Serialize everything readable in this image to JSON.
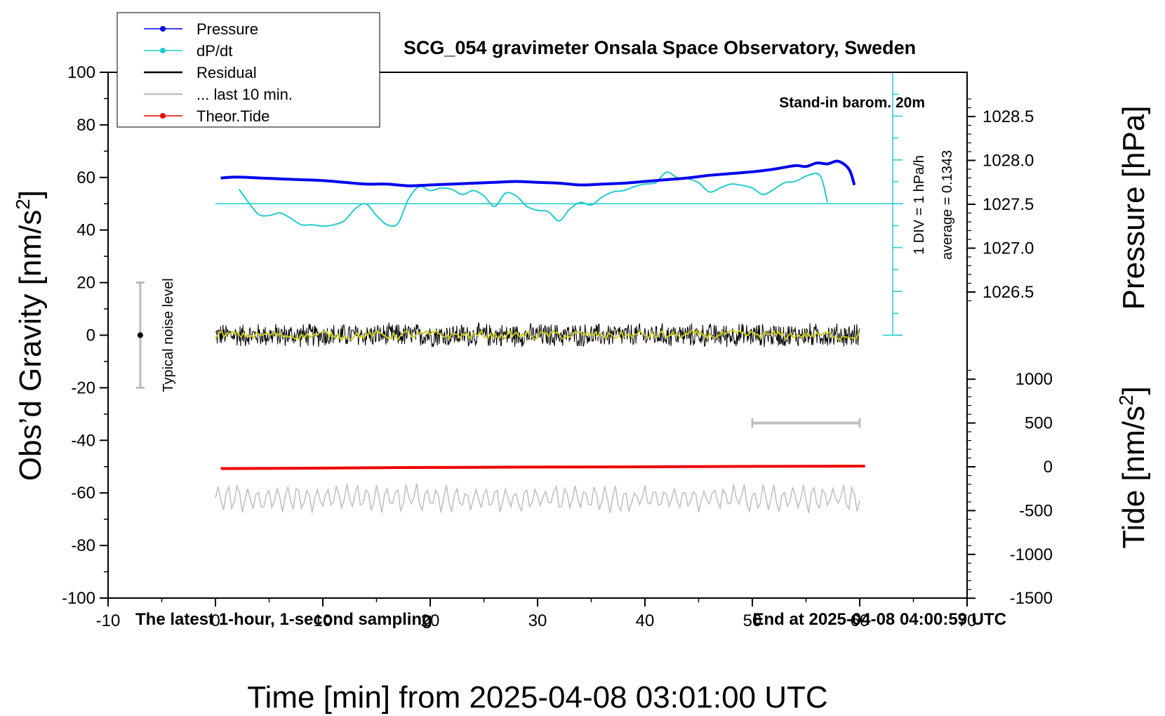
{
  "chart_data": {
    "type": "line",
    "title": "SCG_054 gravimeter Onsala Space Observatory, Sweden",
    "xlabel": "Time [min] from 2025-04-08 03:01:00 UTC",
    "ylabel_left": "Obs’d Gravity [nm/s",
    "ylabel_left_sup": "2",
    "ylabel_left_close": "]",
    "ylabel_right_pressure": "Pressure [hPa]",
    "ylabel_right_tide": "Tide [nm/s",
    "ylabel_right_tide_sup": "2",
    "ylabel_right_tide_close": "]",
    "xlim": [
      -10,
      70
    ],
    "ylim_left": [
      -100,
      100
    ],
    "x_ticks": [
      "-10",
      "0",
      "10",
      "20",
      "30",
      "40",
      "50",
      "60",
      "70"
    ],
    "y_ticks_left": [
      "100",
      "80",
      "60",
      "40",
      "20",
      "0",
      "-20",
      "-40",
      "-60",
      "-80",
      "-100"
    ],
    "pressure_ticks": [
      "1028.5",
      "1028.0",
      "1027.5",
      "1027.0",
      "1026.5"
    ],
    "tide_ticks": [
      "1000",
      "500",
      "0",
      "-500",
      "-1000",
      "-1500"
    ],
    "annotations": {
      "barometer": "Stand-in barom. 20m",
      "scale": "1 DIV = 1 hPa/h",
      "average": "average = 0.1343",
      "noise": "Typical noise level",
      "bottom_left": "The latest 1-hour, 1-second sampling",
      "bottom_right": "End at 2025-04-08 04:00:59 UTC"
    },
    "legend": [
      {
        "label": "Pressure",
        "color": "#0000ee",
        "marker": true
      },
      {
        "label": "dP/dt",
        "color": "#22cccc",
        "marker": true
      },
      {
        "label": "Residual",
        "color": "#000000",
        "marker": false
      },
      {
        "label": "... last 10 min.",
        "color": "#c0c0c0",
        "marker": false
      },
      {
        "label": "Theor.Tide",
        "color": "#ee0000",
        "marker": true
      }
    ],
    "series": [
      {
        "name": "Pressure",
        "units": "hPa",
        "color": "#0000ee",
        "x": [
          0.5,
          2,
          4,
          6,
          8,
          10,
          12,
          14,
          16,
          18,
          20,
          22,
          24,
          26,
          28,
          30,
          32,
          34,
          36,
          38,
          40,
          42,
          44,
          46,
          48,
          50,
          52,
          54,
          55,
          56,
          57,
          58,
          59,
          59.5
        ],
        "y": [
          1027.8,
          1027.81,
          1027.8,
          1027.79,
          1027.78,
          1027.77,
          1027.75,
          1027.73,
          1027.73,
          1027.71,
          1027.72,
          1027.73,
          1027.74,
          1027.75,
          1027.76,
          1027.75,
          1027.74,
          1027.72,
          1027.73,
          1027.74,
          1027.76,
          1027.78,
          1027.8,
          1027.83,
          1027.85,
          1027.87,
          1027.9,
          1027.94,
          1027.93,
          1027.97,
          1027.96,
          1027.99,
          1027.9,
          1027.72
        ]
      },
      {
        "name": "dP/dt",
        "units": "DIV (1 DIV = 1 hPa/h)",
        "baseline_gravity": 50,
        "color": "#22cccc",
        "x": [
          2.2,
          3,
          4,
          5,
          6,
          7,
          8,
          9,
          10,
          11,
          12,
          13,
          14,
          15,
          16,
          17,
          18,
          19,
          20,
          21,
          22,
          23,
          24,
          25,
          26,
          27,
          28,
          29,
          30,
          31,
          32,
          33,
          34,
          35,
          36,
          37,
          38,
          39,
          40,
          41,
          42,
          43,
          44,
          45,
          46,
          47,
          48,
          49,
          50,
          51,
          52,
          53,
          54,
          55,
          56,
          56.5,
          57
        ],
        "y": [
          0.55,
          0.1,
          -0.4,
          -0.45,
          -0.35,
          -0.55,
          -0.8,
          -0.8,
          -0.85,
          -0.8,
          -0.65,
          -0.2,
          0,
          -0.45,
          -0.8,
          -0.75,
          0.2,
          0.65,
          0.5,
          0.6,
          0.55,
          0.35,
          0.5,
          0.3,
          -0.1,
          0.4,
          0.3,
          -0.1,
          -0.25,
          -0.3,
          -0.65,
          -0.2,
          0.05,
          -0.05,
          0.25,
          0.45,
          0.5,
          0.65,
          0.75,
          0.8,
          1.2,
          1.0,
          0.95,
          0.8,
          0.45,
          0.6,
          0.75,
          0.7,
          0.6,
          0.35,
          0.55,
          0.8,
          0.85,
          1.05,
          1.15,
          0.9,
          0.05
        ]
      },
      {
        "name": "Residual",
        "units": "nm/s2",
        "color": "#000000",
        "x_range": [
          0,
          60
        ],
        "amplitude": 5,
        "mean": 0
      },
      {
        "name": "Residual smoothed",
        "units": "nm/s2",
        "color": "#cccc22",
        "x_range": [
          0,
          60
        ],
        "amplitude": 1,
        "mean": 0
      },
      {
        "name": "... last 10 min.",
        "units": "nm/s2 (offset to -62)",
        "color": "#c0c0c0",
        "x_range": [
          0,
          60
        ],
        "amplitude": 6,
        "mean": -62,
        "bar_x_range": [
          50,
          60
        ],
        "bar_tide_value": 500
      },
      {
        "name": "Theor.Tide",
        "units": "nm/s2",
        "color": "#ee0000",
        "x": [
          0.5,
          10,
          20,
          30,
          40,
          50,
          60.5
        ],
        "y": [
          -20,
          -15,
          -7,
          -3,
          0,
          5,
          8
        ]
      }
    ],
    "noise_level": {
      "x": -7,
      "center": 0,
      "low": -20,
      "high": 20
    }
  }
}
